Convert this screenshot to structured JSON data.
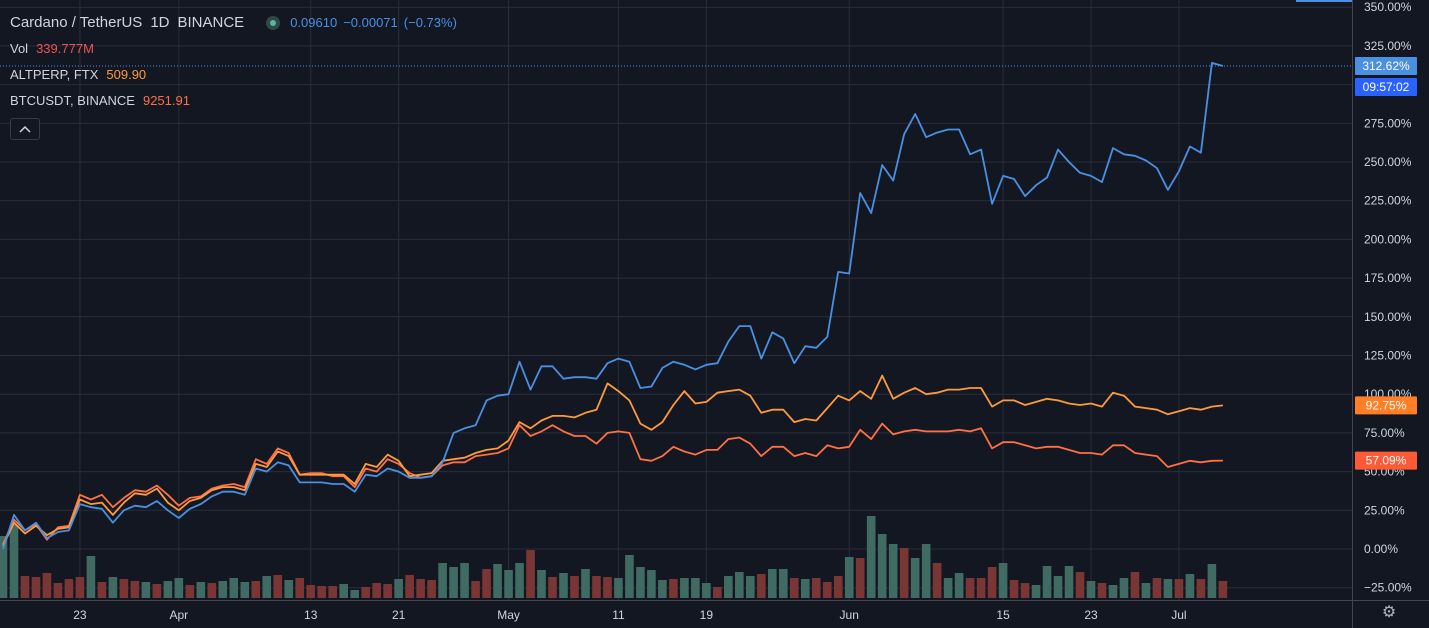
{
  "header": {
    "symbol_title": "Cardano / TetherUS",
    "interval": "1D",
    "exchange": "BINANCE",
    "price": "0.09610",
    "change": "−0.00071",
    "change_pct": "(−0.73%)"
  },
  "legend": [
    {
      "label": "Vol",
      "value": "339.777M",
      "color": "#ef5350"
    },
    {
      "label": "ALTPERP, FTX",
      "value": "509.90",
      "color": "#ff9a3c"
    },
    {
      "label": "BTCUSDT, BINANCE",
      "value": "9251.91",
      "color": "#ff7043"
    }
  ],
  "collapse_icon": "chevron-up-icon",
  "settings_icon": "gear-icon",
  "price_axis": {
    "current_badge": "312.62%",
    "countdown_badge": "09:57:02",
    "altperp_badge": "92.75%",
    "btc_badge": "57.09%"
  },
  "chart_data": {
    "type": "line",
    "yaxis_unit": "%",
    "ylim": [
      -32,
      352
    ],
    "y_ticks": [
      350,
      325,
      300,
      275,
      250,
      225,
      200,
      175,
      150,
      125,
      100,
      75,
      50,
      25,
      0,
      -25
    ],
    "y_tick_labels": [
      "350.00%",
      "325.00%",
      "300.00%",
      "275.00%",
      "250.00%",
      "225.00%",
      "200.00%",
      "175.00%",
      "150.00%",
      "125.00%",
      "100.00%",
      "75.00%",
      "50.00%",
      "25.00%",
      "0.00%",
      "−25.00%"
    ],
    "x_tick_labels": [
      {
        "label": "23",
        "day": 7
      },
      {
        "label": "Apr",
        "day": 16
      },
      {
        "label": "13",
        "day": 28
      },
      {
        "label": "21",
        "day": 36
      },
      {
        "label": "May",
        "day": 46
      },
      {
        "label": "11",
        "day": 56
      },
      {
        "label": "19",
        "day": 64
      },
      {
        "label": "Jun",
        "day": 77
      },
      {
        "label": "15",
        "day": 91
      },
      {
        "label": "23",
        "day": 99
      },
      {
        "label": "Jul",
        "day": 107
      }
    ],
    "grid": true,
    "colors": {
      "ada": "#4a90e2",
      "altperp": "#ff9a3c",
      "btc": "#ff7043",
      "vol_up": "#3f6b62",
      "vol_down": "#7a3535"
    },
    "series": [
      {
        "key": "ada",
        "values": [
          0,
          22,
          12,
          17,
          7,
          11,
          12,
          29,
          27,
          26,
          17,
          25,
          28,
          27,
          31,
          25,
          20,
          26,
          29,
          34,
          37,
          37,
          35,
          52,
          50,
          56,
          54,
          43,
          43,
          43,
          42,
          42,
          37,
          48,
          47,
          52,
          50,
          46,
          46,
          47,
          56,
          75,
          78,
          80,
          96,
          99,
          100,
          121,
          103,
          118,
          118,
          110,
          111,
          111,
          110,
          120,
          123,
          121,
          104,
          105,
          117,
          121,
          119,
          116,
          119,
          120,
          134,
          144,
          144,
          123,
          140,
          136,
          120,
          131,
          130,
          137,
          179,
          178,
          230,
          217,
          248,
          238,
          268,
          281,
          266,
          269,
          271,
          271,
          255,
          258,
          223,
          241,
          239,
          228,
          235,
          240,
          258,
          250,
          243,
          241,
          237,
          259,
          255,
          254,
          251,
          246,
          232,
          244,
          260,
          256,
          314,
          312
        ]
      },
      {
        "key": "altperp",
        "values": [
          2,
          17,
          10,
          15,
          9,
          13,
          14,
          32,
          29,
          30,
          22,
          30,
          36,
          35,
          39,
          30,
          25,
          31,
          33,
          38,
          40,
          40,
          38,
          55,
          53,
          63,
          60,
          48,
          48,
          48,
          48,
          48,
          42,
          55,
          53,
          61,
          57,
          47,
          48,
          49,
          57,
          58,
          59,
          62,
          64,
          65,
          70,
          82,
          78,
          83,
          86,
          86,
          85,
          88,
          90,
          107,
          102,
          96,
          81,
          77,
          82,
          93,
          102,
          94,
          95,
          101,
          102,
          103,
          99,
          88,
          90,
          90,
          82,
          84,
          83,
          91,
          99,
          96,
          102,
          97,
          112,
          97,
          101,
          104,
          100,
          101,
          103,
          103,
          104,
          104,
          92,
          96,
          96,
          93,
          95,
          97,
          96,
          94,
          93,
          94,
          92,
          101,
          99,
          92,
          91,
          90,
          87,
          89,
          91,
          90,
          92,
          92.75
        ]
      },
      {
        "key": "btc",
        "values": [
          3,
          19,
          12,
          16,
          6,
          14,
          15,
          35,
          32,
          35,
          27,
          33,
          38,
          37,
          41,
          35,
          28,
          33,
          34,
          39,
          41,
          42,
          40,
          58,
          55,
          65,
          62,
          48,
          49,
          49,
          47,
          47,
          40,
          52,
          50,
          58,
          55,
          49,
          46,
          47,
          54,
          56,
          56,
          60,
          61,
          62,
          65,
          80,
          73,
          76,
          80,
          76,
          73,
          73,
          68,
          75,
          76,
          75,
          58,
          57,
          60,
          66,
          63,
          61,
          64,
          64,
          71,
          72,
          68,
          60,
          66,
          66,
          60,
          62,
          60,
          67,
          65,
          66,
          77,
          71,
          81,
          74,
          76,
          77,
          76,
          76,
          76,
          77,
          76,
          78,
          65,
          69,
          69,
          67,
          65,
          66,
          66,
          64,
          62,
          62,
          61,
          67,
          67,
          62,
          61,
          60,
          53,
          55,
          57,
          56,
          57,
          57.09
        ]
      }
    ],
    "volume_scale": "relative",
    "volume": [
      [
        1,
        62
      ],
      [
        1,
        73
      ],
      [
        0,
        22
      ],
      [
        0,
        21
      ],
      [
        0,
        25
      ],
      [
        0,
        15
      ],
      [
        0,
        19
      ],
      [
        0,
        21
      ],
      [
        1,
        42
      ],
      [
        0,
        16
      ],
      [
        1,
        21
      ],
      [
        0,
        19
      ],
      [
        0,
        17
      ],
      [
        1,
        16
      ],
      [
        0,
        14
      ],
      [
        1,
        17
      ],
      [
        1,
        20
      ],
      [
        0,
        13
      ],
      [
        1,
        16
      ],
      [
        0,
        15
      ],
      [
        1,
        17
      ],
      [
        1,
        20
      ],
      [
        1,
        16
      ],
      [
        0,
        17
      ],
      [
        1,
        22
      ],
      [
        0,
        23
      ],
      [
        1,
        18
      ],
      [
        0,
        20
      ],
      [
        0,
        13
      ],
      [
        0,
        12
      ],
      [
        0,
        12
      ],
      [
        1,
        14
      ],
      [
        1,
        8
      ],
      [
        0,
        11
      ],
      [
        0,
        15
      ],
      [
        0,
        14
      ],
      [
        1,
        19
      ],
      [
        0,
        23
      ],
      [
        0,
        19
      ],
      [
        0,
        18
      ],
      [
        1,
        35
      ],
      [
        1,
        31
      ],
      [
        1,
        35
      ],
      [
        0,
        17
      ],
      [
        0,
        29
      ],
      [
        1,
        34
      ],
      [
        1,
        28
      ],
      [
        1,
        35
      ],
      [
        0,
        48
      ],
      [
        1,
        28
      ],
      [
        0,
        21
      ],
      [
        1,
        25
      ],
      [
        0,
        22
      ],
      [
        1,
        29
      ],
      [
        0,
        22
      ],
      [
        0,
        21
      ],
      [
        1,
        20
      ],
      [
        1,
        43
      ],
      [
        1,
        31
      ],
      [
        1,
        28
      ],
      [
        1,
        18
      ],
      [
        0,
        19
      ],
      [
        1,
        20
      ],
      [
        1,
        20
      ],
      [
        1,
        15
      ],
      [
        0,
        11
      ],
      [
        1,
        22
      ],
      [
        1,
        26
      ],
      [
        1,
        22
      ],
      [
        0,
        24
      ],
      [
        1,
        29
      ],
      [
        1,
        29
      ],
      [
        0,
        20
      ],
      [
        1,
        19
      ],
      [
        0,
        20
      ],
      [
        0,
        16
      ],
      [
        0,
        22
      ],
      [
        1,
        41
      ],
      [
        0,
        40
      ],
      [
        1,
        82
      ],
      [
        1,
        64
      ],
      [
        1,
        54
      ],
      [
        0,
        50
      ],
      [
        1,
        40
      ],
      [
        1,
        54
      ],
      [
        0,
        35
      ],
      [
        1,
        20
      ],
      [
        1,
        25
      ],
      [
        0,
        20
      ],
      [
        0,
        20
      ],
      [
        0,
        31
      ],
      [
        1,
        35
      ],
      [
        0,
        18
      ],
      [
        0,
        15
      ],
      [
        1,
        13
      ],
      [
        1,
        32
      ],
      [
        1,
        22
      ],
      [
        1,
        32
      ],
      [
        0,
        26
      ],
      [
        1,
        17
      ],
      [
        0,
        15
      ],
      [
        1,
        13
      ],
      [
        1,
        20
      ],
      [
        0,
        26
      ],
      [
        1,
        15
      ],
      [
        0,
        20
      ],
      [
        1,
        19
      ],
      [
        0,
        19
      ],
      [
        1,
        24
      ],
      [
        0,
        19
      ],
      [
        1,
        34
      ],
      [
        0,
        17
      ]
    ],
    "ada_last_label": "312.62%"
  }
}
